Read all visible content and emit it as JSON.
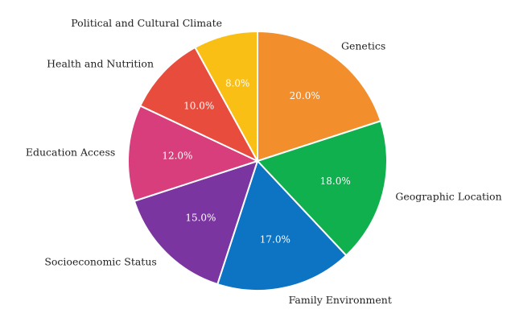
{
  "chart_data": {
    "type": "pie",
    "title": "",
    "start_angle_deg": 0,
    "direction": "clockwise",
    "value_format": "0.0%",
    "slices": [
      {
        "label": "Genetics",
        "value": 20.0,
        "value_label": "20.0%",
        "color": "#F28E2B"
      },
      {
        "label": "Geographic Location",
        "value": 18.0,
        "value_label": "18.0%",
        "color": "#11B04F"
      },
      {
        "label": "Family Environment",
        "value": 17.0,
        "value_label": "17.0%",
        "color": "#0D73C3"
      },
      {
        "label": "Socioeconomic Status",
        "value": 15.0,
        "value_label": "15.0%",
        "color": "#7B35A0"
      },
      {
        "label": "Education Access",
        "value": 12.0,
        "value_label": "12.0%",
        "color": "#D93E7C"
      },
      {
        "label": "Health and Nutrition",
        "value": 10.0,
        "value_label": "10.0%",
        "color": "#E84C3C"
      },
      {
        "label": "Political and Cultural Climate",
        "value": 8.0,
        "value_label": "8.0%",
        "color": "#F9BF15"
      }
    ]
  }
}
